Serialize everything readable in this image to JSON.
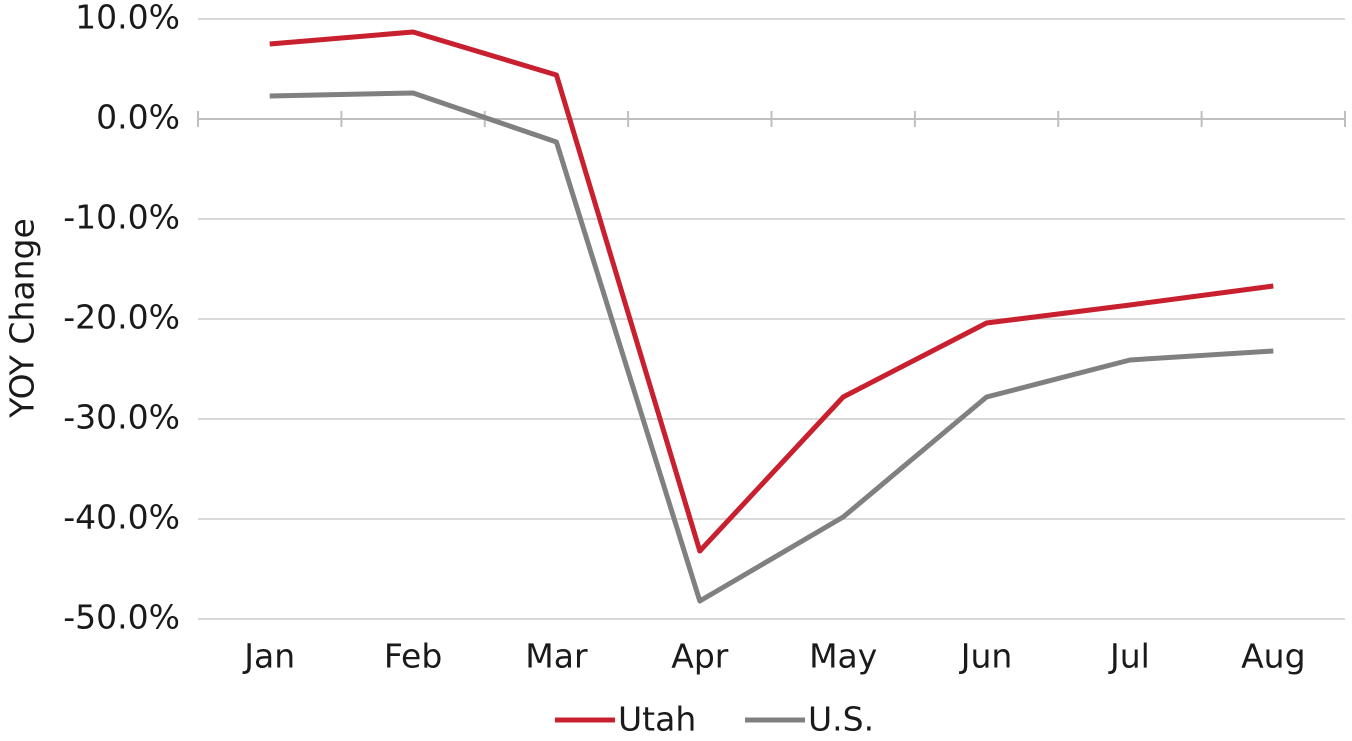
{
  "chart_data": {
    "type": "line",
    "y_label": "YOY Change",
    "categories": [
      "Jan",
      "Feb",
      "Mar",
      "Apr",
      "May",
      "Jun",
      "Jul",
      "Aug"
    ],
    "series": [
      {
        "name": "Utah",
        "color": "#c8202f",
        "values": [
          7.5,
          8.7,
          4.4,
          -43.2,
          -27.8,
          -20.4,
          -18.6,
          -16.7
        ]
      },
      {
        "name": "U.S.",
        "color": "#808080",
        "values": [
          2.3,
          2.6,
          -2.3,
          -48.2,
          -39.8,
          -27.8,
          -24.1,
          -23.2
        ]
      }
    ],
    "ylim": [
      -50,
      10
    ],
    "yticks": [
      {
        "value": -50,
        "label": "-50.0%"
      },
      {
        "value": -40,
        "label": "-40.0%"
      },
      {
        "value": -30,
        "label": "-30.0%"
      },
      {
        "value": -20,
        "label": "-20.0%"
      },
      {
        "value": -10,
        "label": "-10.0%"
      },
      {
        "value": 0,
        "label": "0.0%"
      },
      {
        "value": 10,
        "label": "10.0%"
      }
    ],
    "grid": true,
    "legend": "bottom"
  }
}
